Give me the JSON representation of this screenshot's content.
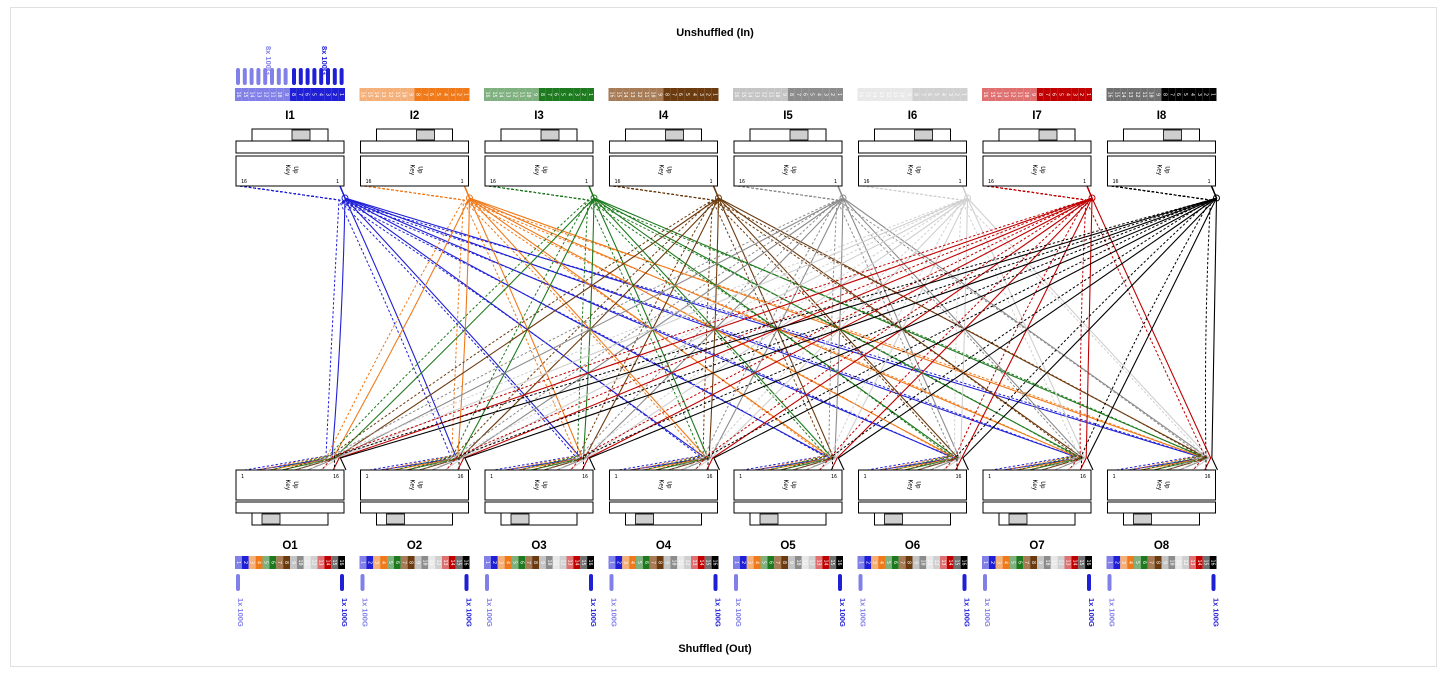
{
  "title_top": "Unshuffled (In)",
  "title_bottom": "Shuffled (Out)",
  "key_text": "Key Up",
  "key_line1": "Key",
  "key_line2": "Up",
  "pin_first": "1",
  "pin_last": "16",
  "input_group_labels": {
    "dim": "8x 100G",
    "bright": "8x 100G"
  },
  "output_label_left": "1x 100G",
  "output_label_right": "1x 100G",
  "fiber_numbers": [
    "1",
    "2",
    "3",
    "4",
    "5",
    "6",
    "7",
    "8",
    "9",
    "10",
    "11",
    "12",
    "13",
    "14",
    "15",
    "16"
  ],
  "inputs": [
    {
      "label": "I1",
      "color": "#1f1fd6",
      "light": "#8080e8"
    },
    {
      "label": "I2",
      "color": "#f07a1a",
      "light": "#f5b07a"
    },
    {
      "label": "I3",
      "color": "#1e7a1e",
      "light": "#7fb07f"
    },
    {
      "label": "I4",
      "color": "#6b3a0f",
      "light": "#a67b55"
    },
    {
      "label": "I5",
      "color": "#8c8c8c",
      "light": "#c4c4c4"
    },
    {
      "label": "I6",
      "color": "#d0d0d0",
      "light": "#e8e8e8"
    },
    {
      "label": "I7",
      "color": "#c00000",
      "light": "#e07070"
    },
    {
      "label": "I8",
      "color": "#000000",
      "light": "#707070"
    }
  ],
  "outputs": [
    {
      "label": "O1"
    },
    {
      "label": "O2"
    },
    {
      "label": "O3"
    },
    {
      "label": "O4"
    },
    {
      "label": "O5"
    },
    {
      "label": "O6"
    },
    {
      "label": "O7"
    },
    {
      "label": "O8"
    }
  ]
}
